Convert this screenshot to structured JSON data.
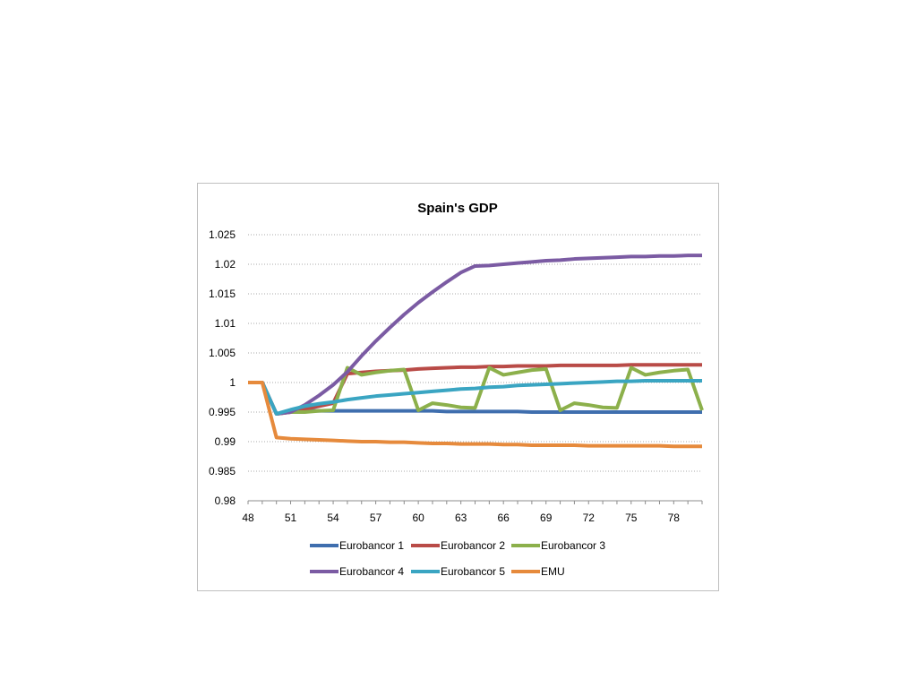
{
  "chart_data": {
    "type": "line",
    "title": "Spain's GDP",
    "xlabel": "",
    "ylabel": "",
    "ylim": [
      0.98,
      1.025
    ],
    "y_ticks": [
      "0.98",
      "0.985",
      "0.99",
      "0.995",
      "1",
      "1.005",
      "1.01",
      "1.015",
      "1.02",
      "1.025"
    ],
    "x_ticks": [
      48,
      51,
      54,
      57,
      60,
      63,
      66,
      69,
      72,
      75,
      78
    ],
    "x_range": [
      48,
      80
    ],
    "grid": "horizontal dotted",
    "legend_position": "bottom",
    "x": [
      48,
      49,
      50,
      51,
      52,
      53,
      54,
      55,
      56,
      57,
      58,
      59,
      60,
      61,
      62,
      63,
      64,
      65,
      66,
      67,
      68,
      69,
      70,
      71,
      72,
      73,
      74,
      75,
      76,
      77,
      78,
      79,
      80
    ],
    "series": [
      {
        "name": "Eurobancor 1",
        "color": "#3F6EAE",
        "values": [
          1.0,
          1.0,
          0.9947,
          0.9951,
          0.9952,
          0.9952,
          0.9952,
          0.9952,
          0.9952,
          0.9952,
          0.9952,
          0.9952,
          0.9952,
          0.9952,
          0.9951,
          0.9951,
          0.9951,
          0.9951,
          0.9951,
          0.9951,
          0.995,
          0.995,
          0.995,
          0.995,
          0.995,
          0.995,
          0.995,
          0.995,
          0.995,
          0.995,
          0.995,
          0.995,
          0.995
        ]
      },
      {
        "name": "Eurobancor 2",
        "color": "#B94B47",
        "values": [
          1.0,
          1.0,
          0.9947,
          0.995,
          0.9955,
          0.996,
          0.9965,
          1.0015,
          1.0017,
          1.0019,
          1.002,
          1.0021,
          1.0023,
          1.0024,
          1.0025,
          1.0026,
          1.0026,
          1.0027,
          1.0027,
          1.0028,
          1.0028,
          1.0028,
          1.0029,
          1.0029,
          1.0029,
          1.0029,
          1.0029,
          1.003,
          1.003,
          1.003,
          1.003,
          1.003,
          1.003
        ]
      },
      {
        "name": "Eurobancor 3",
        "color": "#8CB04B",
        "values": [
          1.0,
          1.0,
          0.9947,
          0.995,
          0.995,
          0.9952,
          0.9953,
          1.0025,
          1.0013,
          1.0017,
          1.002,
          1.0022,
          0.9953,
          0.9965,
          0.9962,
          0.9958,
          0.9957,
          1.0025,
          1.0013,
          1.0017,
          1.0021,
          1.0023,
          0.9953,
          0.9965,
          0.9962,
          0.9958,
          0.9957,
          1.0025,
          1.0013,
          1.0017,
          1.002,
          1.0022,
          0.9953
        ]
      },
      {
        "name": "Eurobancor 4",
        "color": "#7B5BA3",
        "values": [
          1.0,
          1.0,
          0.9947,
          0.995,
          0.9962,
          0.9978,
          0.9996,
          1.0018,
          1.0045,
          1.007,
          1.0093,
          1.0115,
          1.0135,
          1.0153,
          1.017,
          1.0186,
          1.0197,
          1.0198,
          1.02,
          1.0202,
          1.0204,
          1.0206,
          1.0207,
          1.0209,
          1.021,
          1.0211,
          1.0212,
          1.0213,
          1.0213,
          1.0214,
          1.0214,
          1.0215,
          1.0215
        ]
      },
      {
        "name": "Eurobancor 5",
        "color": "#3AA5C2",
        "values": [
          1.0,
          1.0,
          0.9947,
          0.9954,
          0.996,
          0.9964,
          0.9967,
          0.9971,
          0.9974,
          0.9977,
          0.9979,
          0.9981,
          0.9983,
          0.9985,
          0.9987,
          0.9989,
          0.999,
          0.9992,
          0.9993,
          0.9995,
          0.9996,
          0.9997,
          0.9998,
          0.9999,
          1.0,
          1.0001,
          1.0002,
          1.0002,
          1.0003,
          1.0003,
          1.0003,
          1.0003,
          1.0003
        ]
      },
      {
        "name": "EMU",
        "color": "#E68A3C",
        "values": [
          1.0,
          1.0,
          0.9907,
          0.9905,
          0.9904,
          0.9903,
          0.9902,
          0.9901,
          0.99,
          0.99,
          0.9899,
          0.9899,
          0.9898,
          0.9897,
          0.9897,
          0.9896,
          0.9896,
          0.9896,
          0.9895,
          0.9895,
          0.9894,
          0.9894,
          0.9894,
          0.9894,
          0.9893,
          0.9893,
          0.9893,
          0.9893,
          0.9893,
          0.9893,
          0.9892,
          0.9892,
          0.9892
        ]
      }
    ]
  }
}
